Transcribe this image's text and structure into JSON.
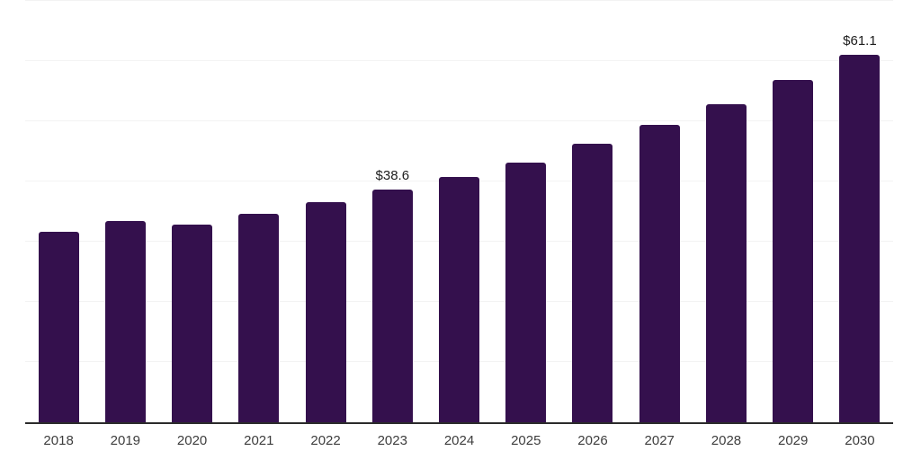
{
  "chart_data": {
    "type": "bar",
    "categories": [
      "2018",
      "2019",
      "2020",
      "2021",
      "2022",
      "2023",
      "2024",
      "2025",
      "2026",
      "2027",
      "2028",
      "2029",
      "2030"
    ],
    "values": [
      31.7,
      33.5,
      32.9,
      34.6,
      36.5,
      38.6,
      40.8,
      43.2,
      46.2,
      49.4,
      52.8,
      56.9,
      61.1
    ],
    "data_labels": [
      null,
      null,
      null,
      null,
      null,
      "$38.6",
      null,
      null,
      null,
      null,
      null,
      null,
      "$61.1"
    ],
    "title": "",
    "xlabel": "",
    "ylabel": "",
    "ylim": [
      0,
      70
    ],
    "gridline_step": 10,
    "grid": "horizontal",
    "legend": "none",
    "value_prefix": "$"
  },
  "styles": {
    "bar_color": "#34104D",
    "grid_color": "#F3F3F3",
    "axis_color": "#2B2B2B",
    "tick_label_color": "#3D3D3D",
    "data_label_color": "#1C1C1C",
    "background": "#FFFFFF"
  }
}
